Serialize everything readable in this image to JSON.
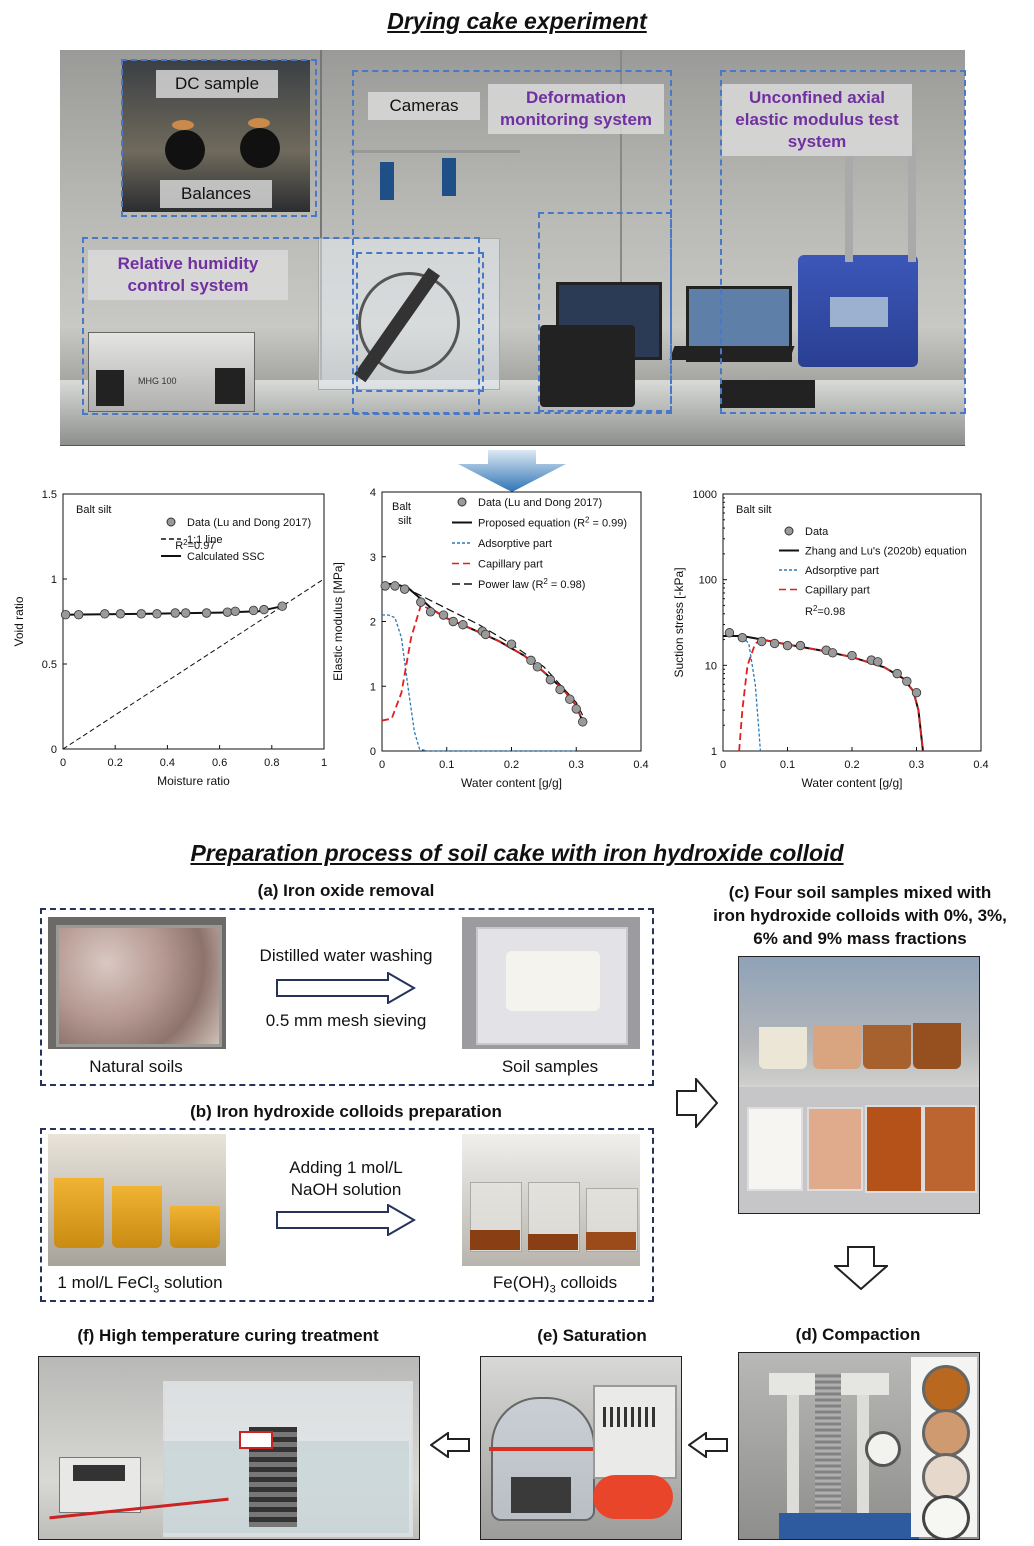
{
  "top_title": "Drying cake experiment",
  "photo_labels": {
    "dc_sample": "DC sample",
    "balances": "Balances",
    "cameras": "Cameras",
    "deformation": "Deformation monitoring system",
    "unconfined": "Unconfined axial elastic modulus test system",
    "rh": "Relative humidity control system",
    "device_text": "MHG 100"
  },
  "chart_data": [
    {
      "type": "line",
      "annotation": "Balt silt",
      "xlabel": "Moisture ratio",
      "ylabel": "Void ratio",
      "xlim": [
        0,
        1
      ],
      "ylim": [
        0,
        1.5
      ],
      "xticks": [
        "0",
        "0.2",
        "0.4",
        "0.6",
        "0.8",
        "1"
      ],
      "yticks": [
        "0",
        "0.5",
        "1",
        "1.5"
      ],
      "r2": "R²=0.97",
      "legend": [
        "Data (Lu and Dong 2017)",
        "1:1 line",
        "Calculated SSC"
      ],
      "data_points": [
        [
          0.01,
          0.79
        ],
        [
          0.06,
          0.79
        ],
        [
          0.16,
          0.795
        ],
        [
          0.22,
          0.795
        ],
        [
          0.3,
          0.795
        ],
        [
          0.36,
          0.795
        ],
        [
          0.43,
          0.8
        ],
        [
          0.47,
          0.8
        ],
        [
          0.55,
          0.8
        ],
        [
          0.63,
          0.805
        ],
        [
          0.66,
          0.81
        ],
        [
          0.73,
          0.815
        ],
        [
          0.77,
          0.82
        ],
        [
          0.84,
          0.84
        ]
      ],
      "ssc_line": [
        [
          0,
          0.79
        ],
        [
          0.3,
          0.795
        ],
        [
          0.6,
          0.802
        ],
        [
          0.75,
          0.81
        ],
        [
          0.84,
          0.84
        ]
      ],
      "one_to_one": [
        [
          0,
          0
        ],
        [
          1,
          1
        ]
      ]
    },
    {
      "type": "line",
      "annotation": "Balt silt",
      "xlabel": "Water content [g/g]",
      "ylabel": "Elastic modulus [MPa]",
      "xlim": [
        0,
        0.4
      ],
      "ylim": [
        0,
        4
      ],
      "xticks": [
        "0",
        "0.1",
        "0.2",
        "0.3",
        "0.4"
      ],
      "yticks": [
        "0",
        "1",
        "2",
        "3",
        "4"
      ],
      "legend": [
        "Data (Lu and Dong 2017)",
        "Proposed equation (R² = 0.99)",
        "Adsorptive part",
        "Capillary part",
        "Power law (R² = 0.98)"
      ],
      "data_points": [
        [
          0.005,
          2.55
        ],
        [
          0.02,
          2.55
        ],
        [
          0.035,
          2.5
        ],
        [
          0.06,
          2.3
        ],
        [
          0.075,
          2.15
        ],
        [
          0.095,
          2.1
        ],
        [
          0.11,
          2.0
        ],
        [
          0.125,
          1.95
        ],
        [
          0.155,
          1.85
        ],
        [
          0.16,
          1.8
        ],
        [
          0.2,
          1.65
        ],
        [
          0.23,
          1.4
        ],
        [
          0.24,
          1.3
        ],
        [
          0.26,
          1.1
        ],
        [
          0.275,
          0.95
        ],
        [
          0.29,
          0.8
        ],
        [
          0.3,
          0.65
        ],
        [
          0.31,
          0.45
        ]
      ],
      "proposed": [
        [
          0,
          2.58
        ],
        [
          0.02,
          2.58
        ],
        [
          0.04,
          2.52
        ],
        [
          0.06,
          2.35
        ],
        [
          0.08,
          2.17
        ],
        [
          0.1,
          2.05
        ],
        [
          0.14,
          1.88
        ],
        [
          0.18,
          1.7
        ],
        [
          0.22,
          1.47
        ],
        [
          0.25,
          1.22
        ],
        [
          0.28,
          0.95
        ],
        [
          0.3,
          0.7
        ],
        [
          0.31,
          0.45
        ]
      ],
      "adsorptive": [
        [
          0,
          2.1
        ],
        [
          0.01,
          2.1
        ],
        [
          0.02,
          2.06
        ],
        [
          0.03,
          1.75
        ],
        [
          0.04,
          1.0
        ],
        [
          0.05,
          0.3
        ],
        [
          0.058,
          0.03
        ],
        [
          0.07,
          0
        ],
        [
          0.3,
          0
        ]
      ],
      "capillary": [
        [
          0,
          0.47
        ],
        [
          0.015,
          0.5
        ],
        [
          0.03,
          0.9
        ],
        [
          0.045,
          1.75
        ],
        [
          0.06,
          2.25
        ],
        [
          0.08,
          2.17
        ],
        [
          0.1,
          2.05
        ],
        [
          0.14,
          1.88
        ],
        [
          0.18,
          1.7
        ],
        [
          0.22,
          1.47
        ],
        [
          0.25,
          1.22
        ],
        [
          0.28,
          0.95
        ],
        [
          0.3,
          0.7
        ],
        [
          0.31,
          0.45
        ]
      ],
      "power_law": [
        [
          0.05,
          2.45
        ],
        [
          0.1,
          2.2
        ],
        [
          0.15,
          1.95
        ],
        [
          0.2,
          1.65
        ],
        [
          0.25,
          1.3
        ],
        [
          0.3,
          0.75
        ],
        [
          0.31,
          0.55
        ]
      ]
    },
    {
      "type": "line",
      "annotation": "Balt silt",
      "xlabel": "Water content [g/g]",
      "ylabel": "Suction stress [-kPa]",
      "xlim": [
        0,
        0.4
      ],
      "ylim": [
        1,
        1000
      ],
      "yscale": "log",
      "xticks": [
        "0",
        "0.1",
        "0.2",
        "0.3",
        "0.4"
      ],
      "yticks": [
        "1",
        "10",
        "100",
        "1000"
      ],
      "r2": "R²=0.98",
      "legend": [
        "Data",
        "Zhang and Lu's (2020b) equation",
        "Adsorptive part",
        "Capillary part"
      ],
      "data_points": [
        [
          0.01,
          24
        ],
        [
          0.03,
          21
        ],
        [
          0.06,
          19
        ],
        [
          0.08,
          18
        ],
        [
          0.1,
          17
        ],
        [
          0.12,
          17
        ],
        [
          0.16,
          15
        ],
        [
          0.17,
          14
        ],
        [
          0.2,
          13
        ],
        [
          0.23,
          11.5
        ],
        [
          0.24,
          11
        ],
        [
          0.27,
          8
        ],
        [
          0.285,
          6.5
        ],
        [
          0.3,
          4.8
        ]
      ],
      "equation": [
        [
          0,
          22
        ],
        [
          0.03,
          22
        ],
        [
          0.06,
          20
        ],
        [
          0.1,
          17.5
        ],
        [
          0.15,
          15
        ],
        [
          0.2,
          12.5
        ],
        [
          0.25,
          9.5
        ],
        [
          0.28,
          7
        ],
        [
          0.295,
          5
        ],
        [
          0.303,
          3
        ],
        [
          0.307,
          1.6
        ],
        [
          0.31,
          1
        ]
      ],
      "adsorptive": [
        [
          0.03,
          21.5
        ],
        [
          0.04,
          18
        ],
        [
          0.05,
          6
        ],
        [
          0.055,
          2
        ],
        [
          0.058,
          1
        ]
      ],
      "capillary": [
        [
          0.025,
          1
        ],
        [
          0.03,
          3
        ],
        [
          0.038,
          10
        ],
        [
          0.05,
          18
        ],
        [
          0.06,
          20
        ],
        [
          0.1,
          17.5
        ],
        [
          0.15,
          15
        ],
        [
          0.2,
          12.5
        ],
        [
          0.25,
          9.5
        ],
        [
          0.28,
          7
        ],
        [
          0.295,
          5
        ],
        [
          0.303,
          3
        ],
        [
          0.307,
          1.6
        ],
        [
          0.31,
          1
        ]
      ]
    }
  ],
  "bottom_title": "Preparation process of soil cake with iron hydroxide colloid",
  "steps": {
    "a": "(a) Iron oxide removal",
    "a_top": "Distilled water washing",
    "a_bottom": "0.5 mm mesh sieving",
    "a_left": "Natural soils",
    "a_right": "Soil samples",
    "b": "(b) Iron hydroxide colloids preparation",
    "b_top1": "Adding 1 mol/L",
    "b_top2": "NaOH solution",
    "b_left": "1 mol/L FeCl",
    "b_left_sub": "3",
    "b_left_tail": " solution",
    "b_right": "Fe(OH)",
    "b_right_sub": "3",
    "b_right_tail": " colloids",
    "c1": "(c) Four soil samples mixed with",
    "c2": "iron hydroxide colloids with 0%, 3%,",
    "c3": "6% and 9% mass fractions",
    "d": "(d) Compaction",
    "e": "(e) Saturation",
    "f": "(f) High temperature curing treatment"
  },
  "colors": {
    "callout_text": "#7030a0",
    "dash_blue": "#4a78c8",
    "dash_navy": "#25335a",
    "capillary": "#e02020",
    "adsorptive": "#2a7ab8"
  }
}
